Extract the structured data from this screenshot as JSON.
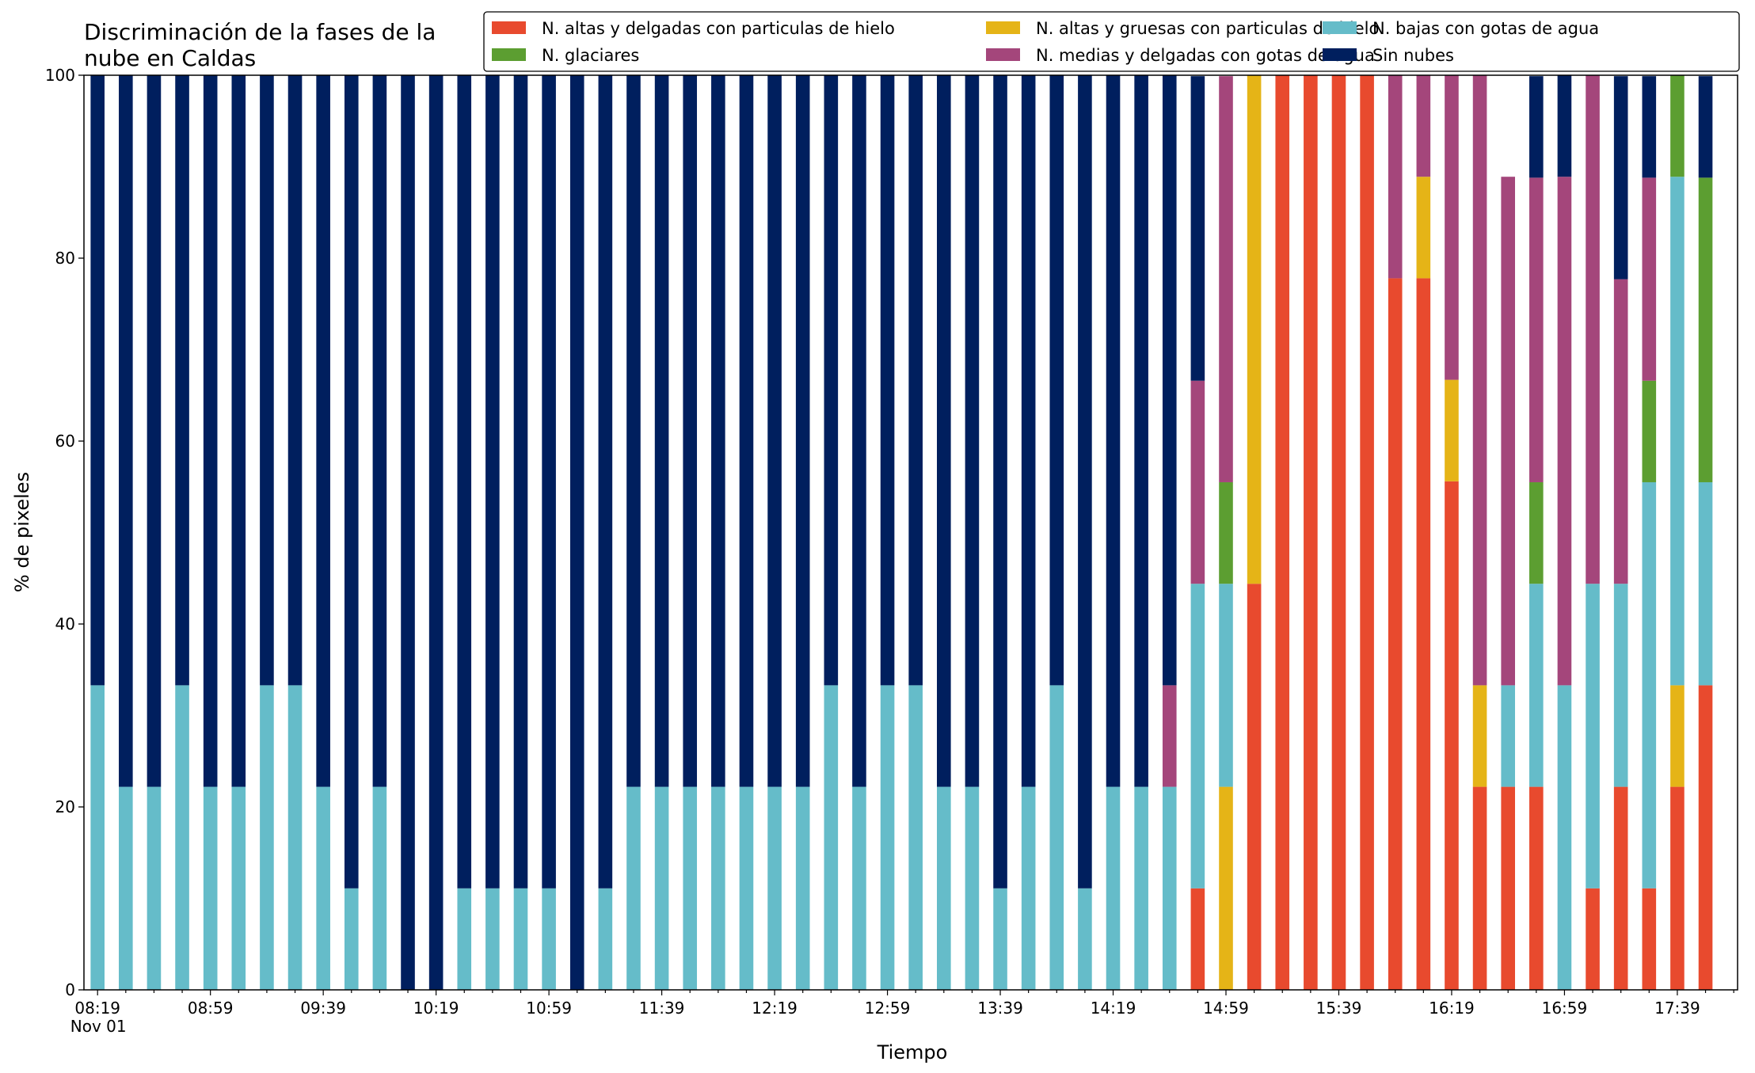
{
  "chart_data": {
    "type": "bar",
    "stacked": true,
    "title": "Discriminación de la fases de la\nnube en Caldas",
    "xlabel": "Tiempo",
    "ylabel": "% de pixeles",
    "ylim": [
      0,
      100
    ],
    "yticks": [
      0,
      20,
      40,
      60,
      80,
      100
    ],
    "grid": false,
    "legend_position": "top-right",
    "legend_columns": 3,
    "x_start_label": "08:19",
    "x_date_label": "Nov 01",
    "x_tick_labels": [
      "08:19",
      "08:59",
      "09:39",
      "10:19",
      "10:59",
      "11:39",
      "12:19",
      "12:59",
      "13:39",
      "14:19",
      "14:59",
      "15:39",
      "16:19",
      "16:59",
      "17:39"
    ],
    "x_interval_minutes": 10,
    "categories": [
      "08:19",
      "08:29",
      "08:39",
      "08:49",
      "08:59",
      "09:09",
      "09:19",
      "09:29",
      "09:39",
      "09:49",
      "09:59",
      "10:09",
      "10:19",
      "10:29",
      "10:39",
      "10:49",
      "10:59",
      "11:09",
      "11:19",
      "11:29",
      "11:39",
      "11:49",
      "11:59",
      "12:09",
      "12:19",
      "12:29",
      "12:39",
      "12:49",
      "12:59",
      "13:09",
      "13:19",
      "13:29",
      "13:39",
      "13:49",
      "13:59",
      "14:09",
      "14:19",
      "14:29",
      "14:39",
      "14:49",
      "14:59",
      "15:09",
      "15:19",
      "15:29",
      "15:39",
      "15:49",
      "15:59",
      "16:09",
      "16:19",
      "16:29",
      "16:39",
      "16:49",
      "16:59",
      "17:09",
      "17:19",
      "17:29",
      "17:39",
      "17:49"
    ],
    "series": [
      {
        "name": "N. altas y delgadas con particulas de hielo",
        "color": "#e84a2e",
        "values": [
          0,
          0,
          0,
          0,
          0,
          0,
          0,
          0,
          0,
          0,
          0,
          0,
          0,
          0,
          0,
          0,
          0,
          0,
          0,
          0,
          0,
          0,
          0,
          0,
          0,
          0,
          0,
          0,
          0,
          0,
          0,
          0,
          0,
          0,
          0,
          0,
          0,
          0,
          0,
          11.1,
          0,
          44.4,
          100,
          100,
          100,
          100,
          77.8,
          77.8,
          55.6,
          22.2,
          22.2,
          22.2,
          0,
          11.1,
          22.2,
          11.1,
          22.2,
          33.3
        ]
      },
      {
        "name": "N. altas y gruesas con particulas de hielo",
        "color": "#e5b417",
        "values": [
          0,
          0,
          0,
          0,
          0,
          0,
          0,
          0,
          0,
          0,
          0,
          0,
          0,
          0,
          0,
          0,
          0,
          0,
          0,
          0,
          0,
          0,
          0,
          0,
          0,
          0,
          0,
          0,
          0,
          0,
          0,
          0,
          0,
          0,
          0,
          0,
          0,
          0,
          0,
          0,
          22.2,
          55.6,
          0,
          0,
          0,
          0,
          0,
          11.1,
          11.1,
          11.1,
          0,
          0,
          0,
          0,
          0,
          0,
          11.1,
          0
        ]
      },
      {
        "name": "N. bajas con gotas de agua",
        "color": "#65bcc9",
        "values": [
          33.3,
          22.2,
          22.2,
          33.3,
          22.2,
          22.2,
          33.3,
          33.3,
          22.2,
          11.1,
          22.2,
          0,
          0,
          11.1,
          11.1,
          11.1,
          11.1,
          0,
          11.1,
          22.2,
          22.2,
          22.2,
          22.2,
          22.2,
          22.2,
          22.2,
          33.3,
          22.2,
          33.3,
          33.3,
          22.2,
          22.2,
          11.1,
          22.2,
          33.3,
          11.1,
          22.2,
          22.2,
          22.2,
          33.3,
          22.2,
          0,
          0,
          0,
          0,
          0,
          0,
          0,
          0,
          0,
          11.1,
          22.2,
          33.3,
          33.3,
          22.2,
          44.4,
          55.6,
          22.2
        ]
      },
      {
        "name": "N. glaciares",
        "color": "#5c9e31",
        "values": [
          0,
          0,
          0,
          0,
          0,
          0,
          0,
          0,
          0,
          0,
          0,
          0,
          0,
          0,
          0,
          0,
          0,
          0,
          0,
          0,
          0,
          0,
          0,
          0,
          0,
          0,
          0,
          0,
          0,
          0,
          0,
          0,
          0,
          0,
          0,
          0,
          0,
          0,
          0,
          0,
          11.1,
          0,
          0,
          0,
          0,
          0,
          0,
          0,
          0,
          0,
          0,
          11.1,
          0,
          0,
          0,
          11.1,
          11.1,
          33.3
        ]
      },
      {
        "name": "N. medias y delgadas con gotas de agua",
        "color": "#a4467b",
        "values": [
          0,
          0,
          0,
          0,
          0,
          0,
          0,
          0,
          0,
          0,
          0,
          0,
          0,
          0,
          0,
          0,
          0,
          0,
          0,
          0,
          0,
          0,
          0,
          0,
          0,
          0,
          0,
          0,
          0,
          0,
          0,
          0,
          0,
          0,
          0,
          0,
          0,
          0,
          11.1,
          22.2,
          44.4,
          0,
          0,
          0,
          0,
          0,
          22.2,
          11.1,
          33.3,
          66.7,
          55.6,
          33.3,
          55.6,
          55.6,
          33.3,
          22.2,
          0,
          0
        ]
      },
      {
        "name": "Sin nubes",
        "color": "#001f5e",
        "values": [
          66.7,
          77.8,
          77.8,
          66.7,
          77.8,
          77.8,
          66.7,
          66.7,
          77.8,
          88.9,
          77.8,
          100,
          100,
          88.9,
          88.9,
          88.9,
          88.9,
          100,
          88.9,
          77.8,
          77.8,
          77.8,
          77.8,
          77.8,
          77.8,
          77.8,
          66.7,
          77.8,
          66.7,
          66.7,
          77.8,
          77.8,
          88.9,
          77.8,
          66.7,
          88.9,
          77.8,
          77.8,
          66.7,
          33.3,
          0,
          0,
          0,
          0,
          0,
          0,
          0,
          0,
          0,
          0,
          0,
          11.1,
          11.1,
          0,
          22.2,
          11.1,
          0,
          11.1
        ]
      }
    ]
  }
}
